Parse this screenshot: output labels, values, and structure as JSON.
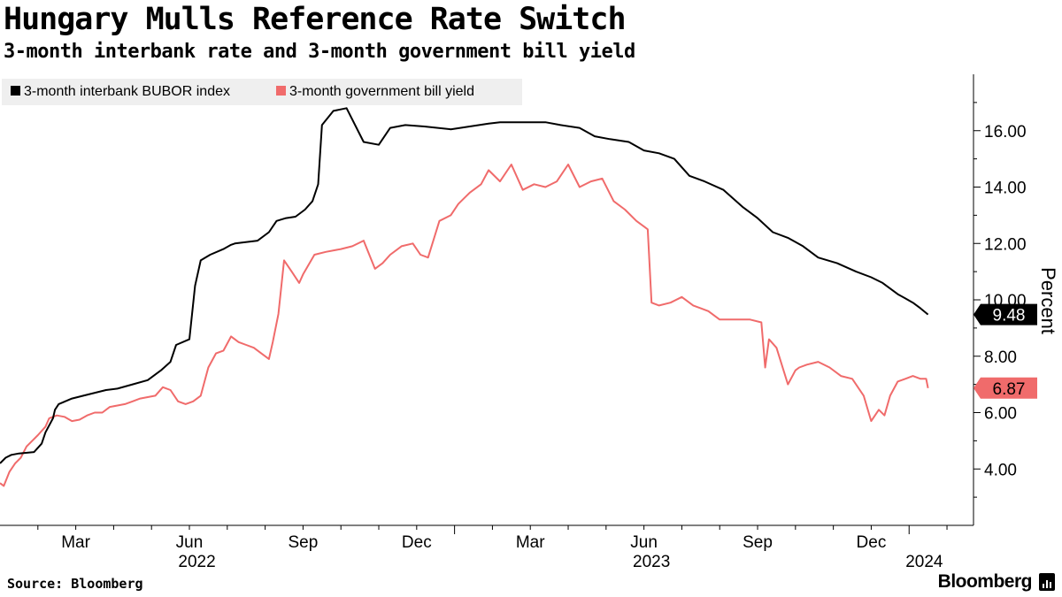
{
  "header": {
    "title": "Hungary Mulls Reference Rate Switch",
    "subtitle": "3-month interbank rate and 3-month government bill yield"
  },
  "footer": {
    "source": "Source: Bloomberg",
    "brand": "Bloomberg"
  },
  "colors": {
    "bubor": "#000000",
    "tbill": "#f06b6b",
    "legend_bg": "#efefef",
    "axis": "#000000"
  },
  "chart_data": {
    "type": "line",
    "title": "Hungary Mulls Reference Rate Switch",
    "subtitle": "3-month interbank rate and 3-month government bill yield",
    "xlabel": "",
    "ylabel": "Percent",
    "ylim": [
      2,
      18
    ],
    "xlim": [
      0,
      25.7
    ],
    "x_unit": "months since 2022-01-01",
    "y_ticks": [
      4,
      6,
      8,
      10,
      12,
      14,
      16
    ],
    "y_tick_labels": [
      "4.00",
      "6.00",
      "8.00",
      "10.00",
      "12.00",
      "14.00",
      "16.00"
    ],
    "x_ticks": [
      {
        "x": 2,
        "label": "Mar"
      },
      {
        "x": 5,
        "label": "Jun"
      },
      {
        "x": 8,
        "label": "Sep"
      },
      {
        "x": 11,
        "label": "Dec"
      },
      {
        "x": 14,
        "label": "Mar"
      },
      {
        "x": 17,
        "label": "Jun"
      },
      {
        "x": 20,
        "label": "Sep"
      },
      {
        "x": 23,
        "label": "Dec"
      }
    ],
    "year_labels": [
      {
        "x": 5.2,
        "label": "2022"
      },
      {
        "x": 17.2,
        "label": "2023"
      },
      {
        "x": 24.4,
        "label": "2024"
      }
    ],
    "legend_position": "top-left",
    "series": [
      {
        "name": "3-month interbank BUBOR index",
        "color": "#000000",
        "last_value": "9.48",
        "x": [
          0,
          0.15,
          0.3,
          0.5,
          0.9,
          1.1,
          1.2,
          1.4,
          1.45,
          1.55,
          1.9,
          2.2,
          2.8,
          3.1,
          3.5,
          3.9,
          4.25,
          4.5,
          4.65,
          5.0,
          5.15,
          5.3,
          5.55,
          5.9,
          6.1,
          6.2,
          6.8,
          7.1,
          7.3,
          7.55,
          7.8,
          8.05,
          8.25,
          8.4,
          8.5,
          8.8,
          9.15,
          9.6,
          10.0,
          10.3,
          10.7,
          11.2,
          11.9,
          12.4,
          12.9,
          13.2,
          13.6,
          14.0,
          14.4,
          14.8,
          15.3,
          15.7,
          16.1,
          16.6,
          17.0,
          17.4,
          17.8,
          18.2,
          18.6,
          19.1,
          19.6,
          20.0,
          20.4,
          20.8,
          21.2,
          21.6,
          22.1,
          22.6,
          23.0,
          23.3,
          23.7,
          23.9,
          24.1,
          24.3,
          24.5
        ],
        "y": [
          4.2,
          4.4,
          4.5,
          4.55,
          4.6,
          4.9,
          5.3,
          5.8,
          6.1,
          6.3,
          6.5,
          6.6,
          6.8,
          6.85,
          7.0,
          7.15,
          7.5,
          7.8,
          8.4,
          8.6,
          10.5,
          11.4,
          11.6,
          11.8,
          11.95,
          12.0,
          12.1,
          12.4,
          12.8,
          12.9,
          12.95,
          13.2,
          13.5,
          14.1,
          16.2,
          16.7,
          16.8,
          15.6,
          15.5,
          16.1,
          16.2,
          16.15,
          16.05,
          16.15,
          16.25,
          16.3,
          16.3,
          16.3,
          16.3,
          16.2,
          16.1,
          15.8,
          15.7,
          15.6,
          15.3,
          15.2,
          15.0,
          14.4,
          14.2,
          13.9,
          13.3,
          12.9,
          12.4,
          12.2,
          11.9,
          11.5,
          11.3,
          11.0,
          10.8,
          10.6,
          10.2,
          10.05,
          9.9,
          9.7,
          9.48
        ]
      },
      {
        "name": "3-month government bill yield",
        "color": "#f06b6b",
        "last_value": "6.87",
        "x": [
          0,
          0.1,
          0.25,
          0.4,
          0.55,
          0.7,
          0.85,
          1.0,
          1.2,
          1.3,
          1.5,
          1.7,
          1.9,
          2.1,
          2.3,
          2.5,
          2.7,
          2.9,
          3.1,
          3.3,
          3.5,
          3.7,
          3.9,
          4.1,
          4.3,
          4.5,
          4.7,
          4.9,
          5.1,
          5.3,
          5.5,
          5.7,
          5.9,
          6.1,
          6.3,
          6.5,
          6.7,
          6.9,
          7.1,
          7.2,
          7.35,
          7.5,
          7.7,
          7.9,
          8.0,
          8.3,
          8.6,
          9.0,
          9.3,
          9.6,
          9.9,
          10.1,
          10.3,
          10.6,
          10.9,
          11.1,
          11.3,
          11.6,
          11.9,
          12.1,
          12.4,
          12.7,
          12.9,
          13.2,
          13.5,
          13.8,
          14.1,
          14.4,
          14.7,
          15.0,
          15.3,
          15.6,
          15.9,
          16.2,
          16.5,
          16.8,
          17.0,
          17.1,
          17.2,
          17.4,
          17.7,
          18.0,
          18.3,
          18.5,
          18.7,
          19.0,
          19.4,
          19.8,
          20.1,
          20.2,
          20.3,
          20.5,
          20.8,
          21.0,
          21.1,
          21.3,
          21.6,
          21.9,
          22.2,
          22.5,
          22.8,
          23.0,
          23.2,
          23.35,
          23.5,
          23.7,
          23.9,
          24.1,
          24.3,
          24.45,
          24.5
        ],
        "y": [
          3.5,
          3.4,
          3.9,
          4.2,
          4.4,
          4.8,
          5.0,
          5.2,
          5.5,
          5.8,
          5.9,
          5.85,
          5.7,
          5.75,
          5.9,
          6.0,
          6.0,
          6.2,
          6.25,
          6.3,
          6.4,
          6.5,
          6.55,
          6.6,
          6.9,
          6.8,
          6.4,
          6.3,
          6.4,
          6.6,
          7.6,
          8.1,
          8.2,
          8.7,
          8.5,
          8.4,
          8.3,
          8.1,
          7.9,
          8.5,
          9.5,
          11.4,
          11.0,
          10.6,
          10.9,
          11.6,
          11.7,
          11.8,
          11.9,
          12.1,
          11.1,
          11.3,
          11.6,
          11.9,
          12.0,
          11.6,
          11.5,
          12.8,
          13.0,
          13.4,
          13.8,
          14.1,
          14.6,
          14.2,
          14.8,
          13.9,
          14.1,
          14.0,
          14.2,
          14.8,
          14.0,
          14.2,
          14.3,
          13.5,
          13.2,
          12.8,
          12.6,
          12.5,
          9.9,
          9.8,
          9.9,
          10.1,
          9.8,
          9.7,
          9.6,
          9.3,
          9.3,
          9.3,
          9.2,
          7.6,
          8.6,
          8.3,
          7.0,
          7.5,
          7.6,
          7.7,
          7.8,
          7.6,
          7.3,
          7.2,
          6.6,
          5.7,
          6.1,
          5.9,
          6.6,
          7.1,
          7.2,
          7.3,
          7.2,
          7.2,
          6.87
        ]
      }
    ]
  }
}
